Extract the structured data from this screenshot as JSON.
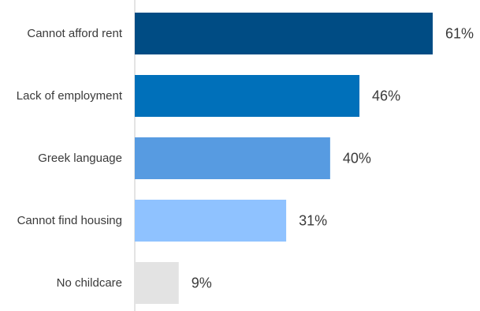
{
  "chart_data": {
    "type": "bar",
    "orientation": "horizontal",
    "categories": [
      "Cannot afford rent",
      "Lack of employment",
      "Greek language",
      "Cannot find housing",
      "No childcare"
    ],
    "values": [
      61,
      46,
      40,
      31,
      9
    ],
    "value_labels": [
      "61%",
      "46%",
      "40%",
      "31%",
      "9%"
    ],
    "unit": "%",
    "bar_colors": [
      "#004C84",
      "#0070BA",
      "#579BE1",
      "#8FC2FF",
      "#E3E3E3"
    ],
    "xlim": [
      0,
      100
    ],
    "grid": false,
    "legend": "none",
    "title": "",
    "xlabel": "",
    "ylabel": ""
  }
}
